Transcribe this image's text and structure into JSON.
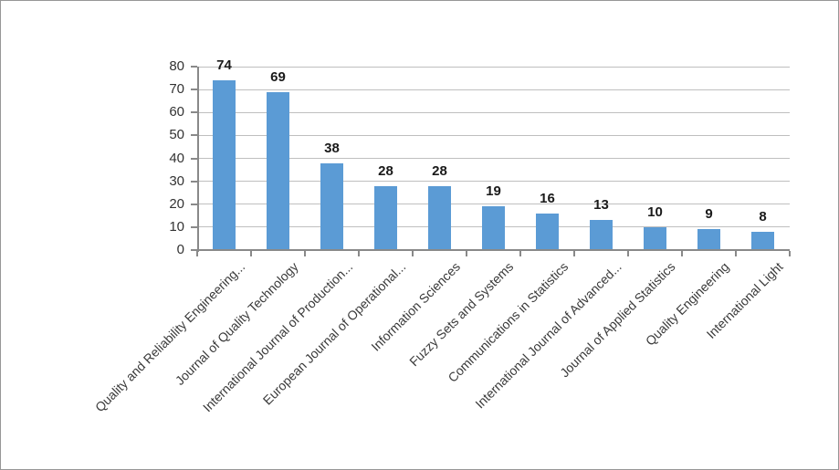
{
  "chart_data": {
    "type": "bar",
    "title": "",
    "xlabel": "",
    "ylabel": "",
    "categories": [
      "Quality and Reliability Engineering...",
      "Journal of Quality Technology",
      "International Journal of Production...",
      "European Journal of Operational...",
      "Information Sciences",
      "Fuzzy Sets and Systems",
      "Communications in Statistics",
      "International Journal of Advanced...",
      "Journal of Applied Statistics",
      "Quality Engineering",
      "International Light"
    ],
    "values": [
      74,
      69,
      38,
      28,
      28,
      19,
      16,
      13,
      10,
      9,
      8
    ],
    "data_labels": [
      74,
      69,
      38,
      28,
      28,
      19,
      16,
      13,
      10,
      9,
      8
    ],
    "ylim": [
      0,
      80
    ],
    "yticks": [
      0,
      10,
      20,
      30,
      40,
      50,
      60,
      70,
      80
    ],
    "grid": true,
    "legend": "none",
    "category_label_rotation_deg": 45,
    "colors": {
      "bar": "#5B9BD5",
      "gridline": "#BFBFBF",
      "axis": "#898989",
      "value_label": "#1a1a1a",
      "tick_label": "#333333",
      "background": "#ffffff",
      "frame_border": "#969696"
    }
  }
}
